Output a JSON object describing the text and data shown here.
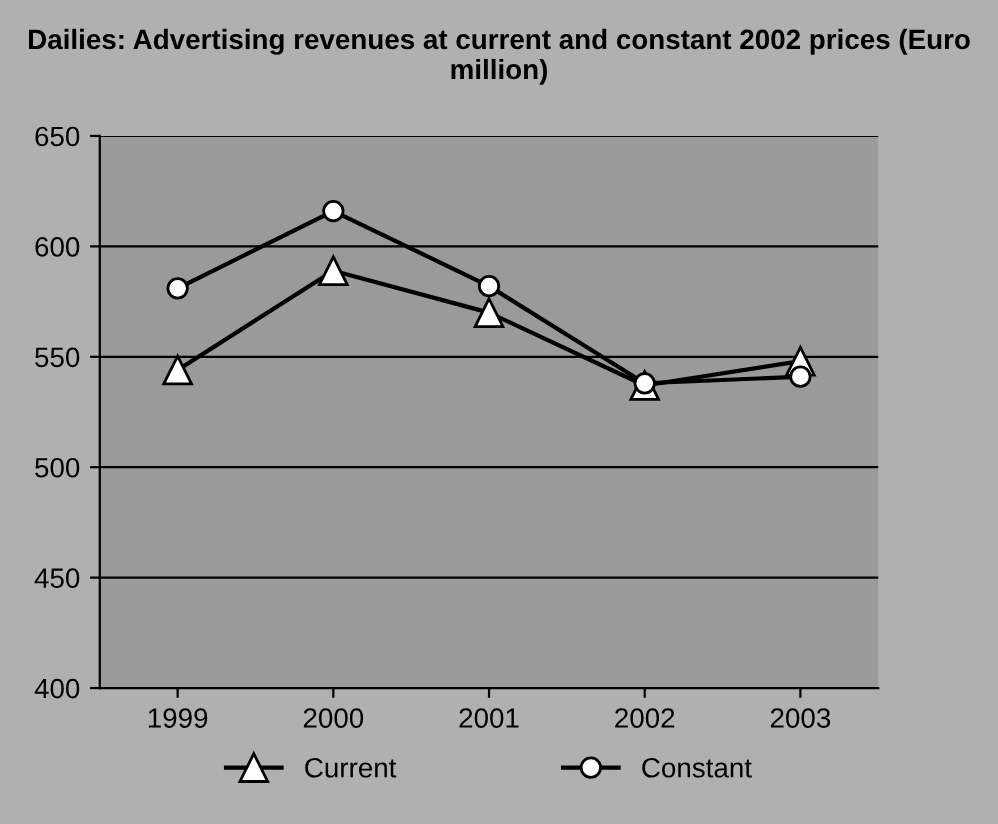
{
  "chart_data": {
    "type": "line",
    "title": "Dailies: Advertising revenues at current and constant 2002 prices (Euro million)",
    "categories": [
      "1999",
      "2000",
      "2001",
      "2002",
      "2003"
    ],
    "series": [
      {
        "name": "Current",
        "color": "#000000",
        "marker": "triangle",
        "values": [
          544,
          589,
          570,
          537,
          548
        ]
      },
      {
        "name": "Constant",
        "color": "#000000",
        "marker": "circle",
        "values": [
          581,
          616,
          582,
          538,
          541
        ]
      }
    ],
    "ylim": [
      400,
      650
    ],
    "yticks": [
      400,
      450,
      500,
      550,
      600,
      650
    ],
    "grid": "y",
    "legend": "bottom",
    "line_style": "solid"
  }
}
